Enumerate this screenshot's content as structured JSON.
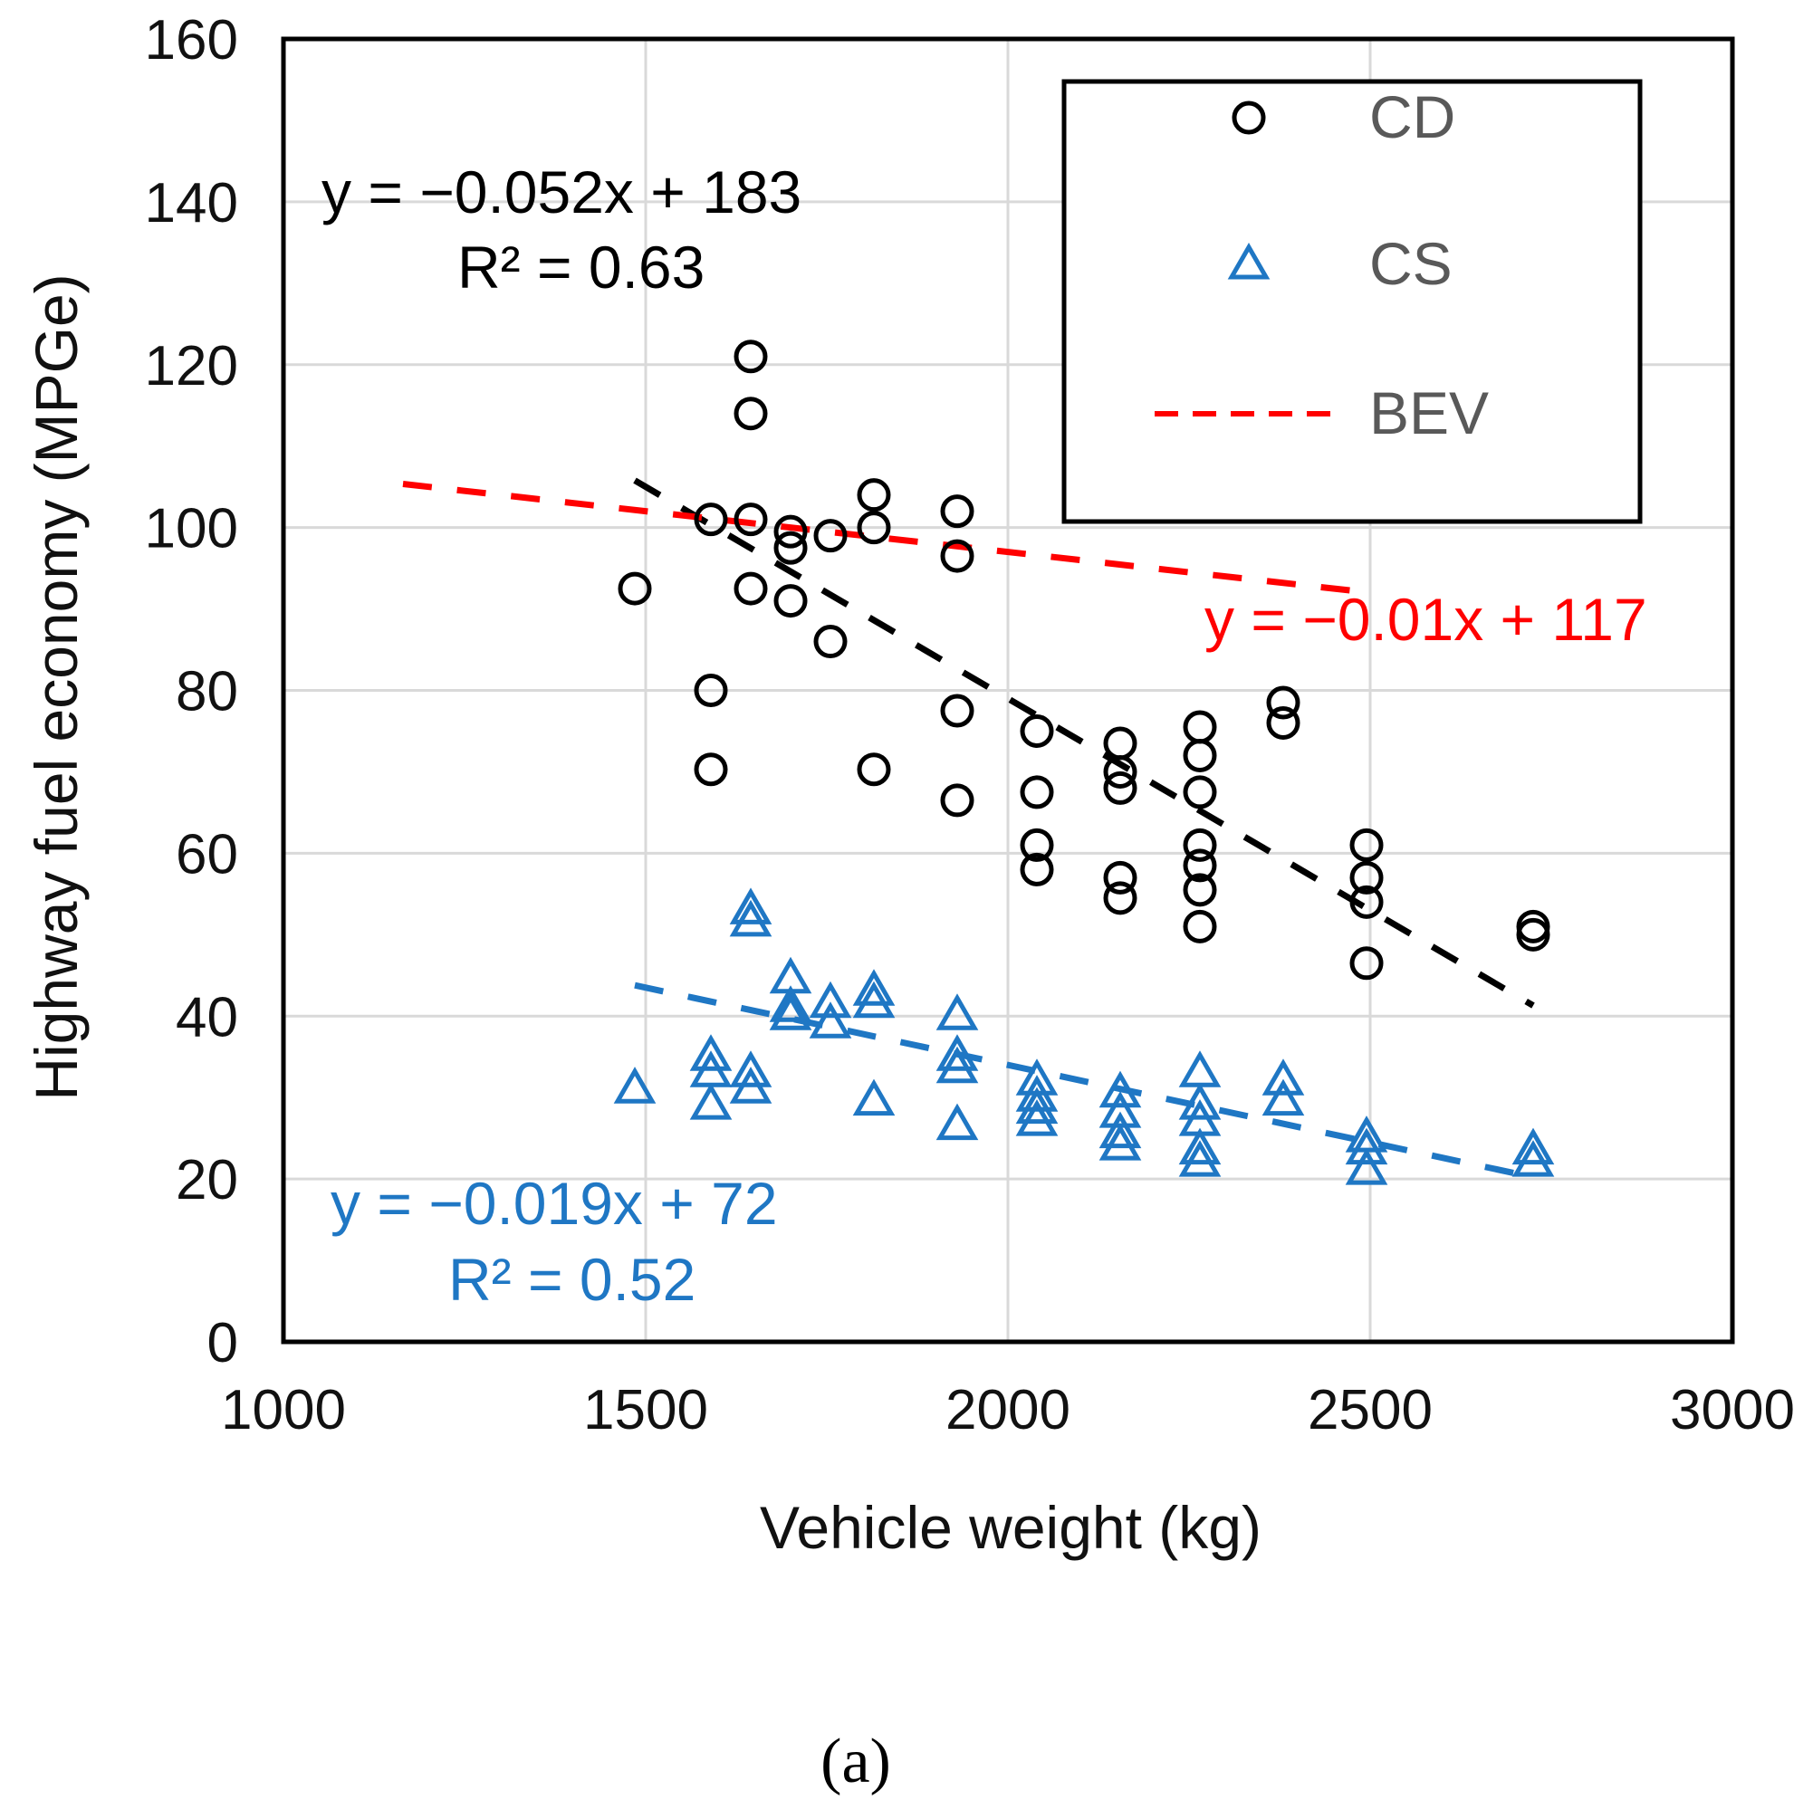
{
  "chart_data": {
    "type": "scatter",
    "title": "",
    "xlabel": "Vehicle weight (kg)",
    "ylabel": "Highway fuel economy (MPGe)",
    "xlim": [
      1000,
      3000
    ],
    "ylim": [
      0,
      160
    ],
    "x_ticks": [
      1000,
      1500,
      2000,
      2500,
      3000
    ],
    "y_ticks": [
      0,
      20,
      40,
      60,
      80,
      100,
      120,
      140,
      160
    ],
    "grid": true,
    "legend_position": "top-right",
    "legend": [
      {
        "name": "CD",
        "marker": "circle",
        "color": "#000000"
      },
      {
        "name": "CS",
        "marker": "triangle",
        "color": "#1f77c4"
      },
      {
        "name": "BEV",
        "marker": "dashed-line",
        "color": "#ff0000"
      }
    ],
    "series": [
      {
        "name": "CD",
        "marker": "circle",
        "color": "#000000",
        "points": [
          [
            1485,
            92.5
          ],
          [
            1590,
            101
          ],
          [
            1590,
            80
          ],
          [
            1590,
            70.3
          ],
          [
            1645,
            121
          ],
          [
            1645,
            114
          ],
          [
            1645,
            101
          ],
          [
            1645,
            92.5
          ],
          [
            1700,
            99.5
          ],
          [
            1700,
            97.5
          ],
          [
            1700,
            91
          ],
          [
            1755,
            99
          ],
          [
            1755,
            86
          ],
          [
            1815,
            104
          ],
          [
            1815,
            100
          ],
          [
            1815,
            70.3
          ],
          [
            1930,
            102
          ],
          [
            1930,
            96.5
          ],
          [
            1930,
            77.5
          ],
          [
            1930,
            66.5
          ],
          [
            2040,
            75
          ],
          [
            2040,
            67.5
          ],
          [
            2040,
            61
          ],
          [
            2040,
            58
          ],
          [
            2155,
            73.5
          ],
          [
            2155,
            70
          ],
          [
            2155,
            68
          ],
          [
            2155,
            57
          ],
          [
            2155,
            54.5
          ],
          [
            2265,
            75.5
          ],
          [
            2265,
            72
          ],
          [
            2265,
            67.5
          ],
          [
            2265,
            61
          ],
          [
            2265,
            58.5
          ],
          [
            2265,
            55.5
          ],
          [
            2265,
            51
          ],
          [
            2380,
            78.5
          ],
          [
            2380,
            76
          ],
          [
            2495,
            61
          ],
          [
            2495,
            57
          ],
          [
            2495,
            54
          ],
          [
            2495,
            46.5
          ],
          [
            2725,
            51
          ],
          [
            2725,
            50
          ]
        ],
        "trendline": {
          "equation": "y = −0.052x + 183",
          "r2": "R² = 0.63",
          "slope": -0.052,
          "intercept": 183,
          "x_range": [
            1485,
            2725
          ],
          "color": "#000000"
        }
      },
      {
        "name": "CS",
        "marker": "triangle",
        "color": "#1f77c4",
        "points": [
          [
            1485,
            31
          ],
          [
            1590,
            35
          ],
          [
            1590,
            33
          ],
          [
            1590,
            29
          ],
          [
            1645,
            53
          ],
          [
            1645,
            51.5
          ],
          [
            1645,
            33
          ],
          [
            1645,
            31
          ],
          [
            1700,
            44.5
          ],
          [
            1700,
            41
          ],
          [
            1700,
            40
          ],
          [
            1755,
            41.5
          ],
          [
            1755,
            39
          ],
          [
            1815,
            43
          ],
          [
            1815,
            41.5
          ],
          [
            1815,
            29.5
          ],
          [
            1930,
            40
          ],
          [
            1930,
            35
          ],
          [
            1930,
            33.5
          ],
          [
            1930,
            26.5
          ],
          [
            2040,
            32
          ],
          [
            2040,
            30
          ],
          [
            2040,
            28.5
          ],
          [
            2040,
            27
          ],
          [
            2155,
            30.5
          ],
          [
            2155,
            28
          ],
          [
            2155,
            25.5
          ],
          [
            2155,
            24
          ],
          [
            2265,
            33
          ],
          [
            2265,
            29
          ],
          [
            2265,
            27
          ],
          [
            2265,
            23.5
          ],
          [
            2265,
            22
          ],
          [
            2380,
            32
          ],
          [
            2380,
            29.5
          ],
          [
            2495,
            25
          ],
          [
            2495,
            23.5
          ],
          [
            2495,
            21
          ],
          [
            2725,
            23.5
          ],
          [
            2725,
            22
          ]
        ],
        "trendline": {
          "equation": "y = −0.019x + 72",
          "r2": "R² = 0.52",
          "slope": -0.019,
          "intercept": 72,
          "x_range": [
            1485,
            2725
          ],
          "color": "#1f77c4"
        }
      },
      {
        "name": "BEV",
        "marker": "dashed-line",
        "color": "#ff0000",
        "points": [],
        "trendline": {
          "equation": "y = −0.01x + 117",
          "slope": -0.01,
          "intercept": 117,
          "x_range": [
            1165,
            2500
          ],
          "color": "#ff0000"
        }
      }
    ],
    "caption": "(a)"
  }
}
